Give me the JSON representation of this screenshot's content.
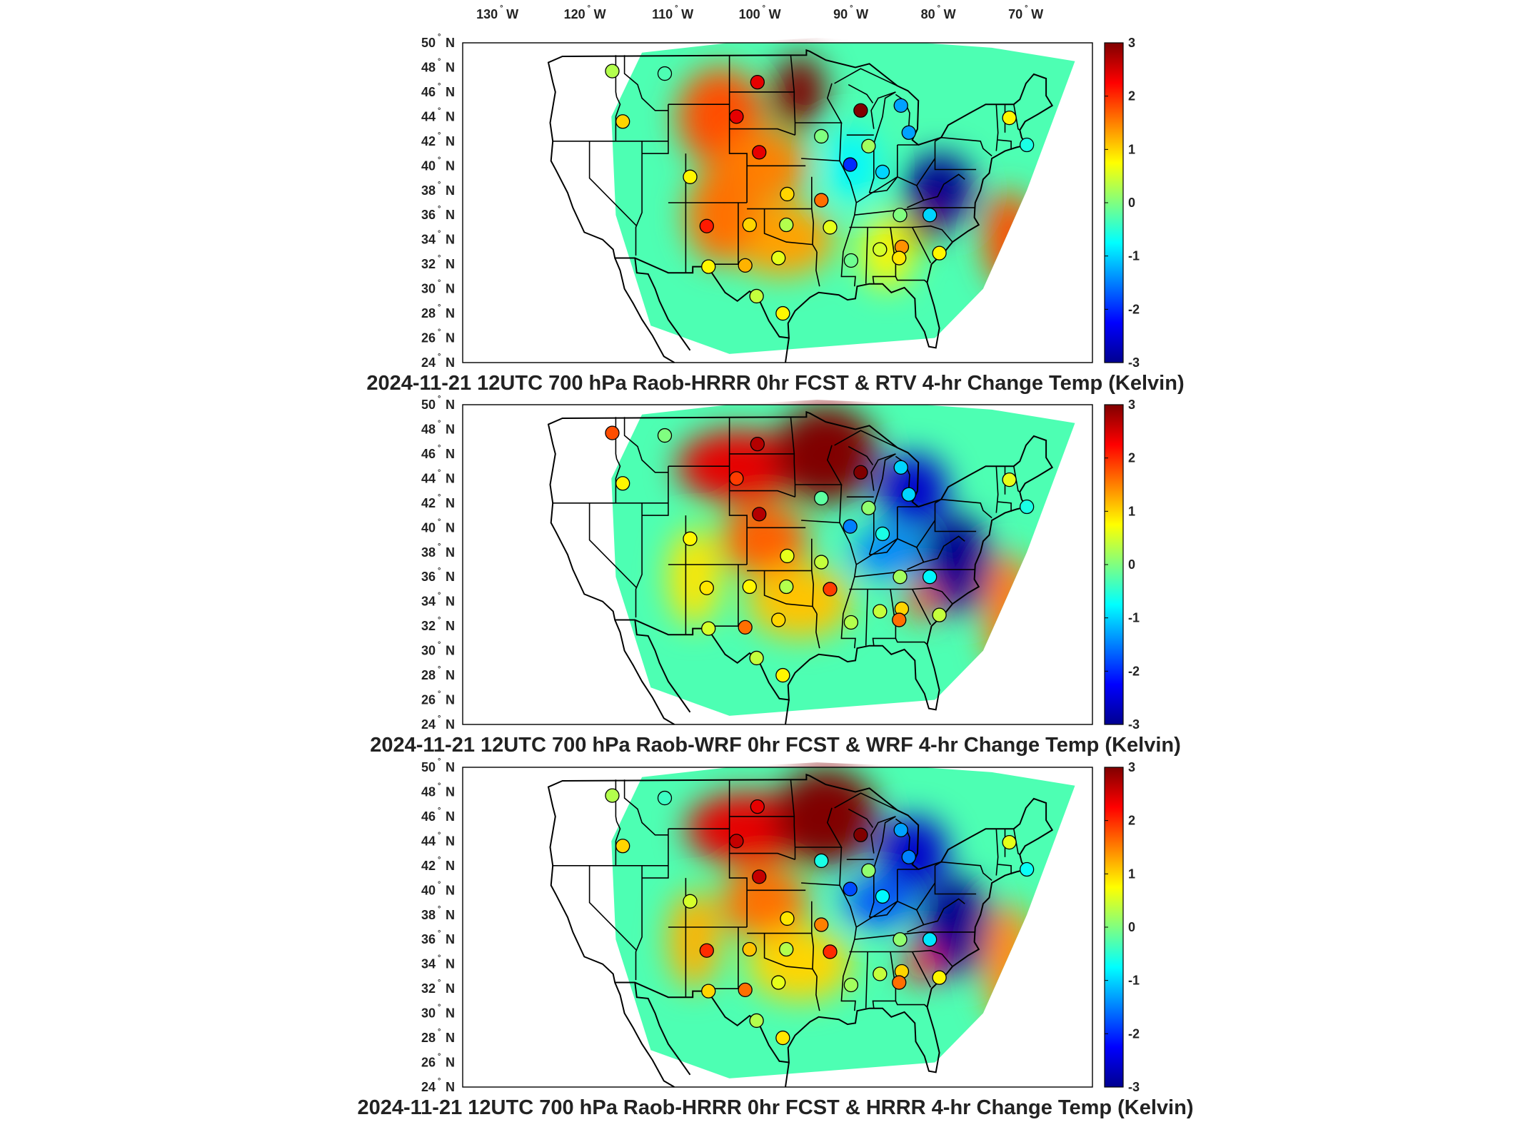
{
  "lon_labels": [
    {
      "deg": "130",
      "hem": "W"
    },
    {
      "deg": "120",
      "hem": "W"
    },
    {
      "deg": "110",
      "hem": "W"
    },
    {
      "deg": "100",
      "hem": "W"
    },
    {
      "deg": "90",
      "hem": "W"
    },
    {
      "deg": "80",
      "hem": "W"
    },
    {
      "deg": "70",
      "hem": "W"
    }
  ],
  "lat_labels": [
    {
      "deg": "50",
      "hem": "N"
    },
    {
      "deg": "48",
      "hem": "N"
    },
    {
      "deg": "46",
      "hem": "N"
    },
    {
      "deg": "44",
      "hem": "N"
    },
    {
      "deg": "42",
      "hem": "N"
    },
    {
      "deg": "40",
      "hem": "N"
    },
    {
      "deg": "38",
      "hem": "N"
    },
    {
      "deg": "36",
      "hem": "N"
    },
    {
      "deg": "34",
      "hem": "N"
    },
    {
      "deg": "32",
      "hem": "N"
    },
    {
      "deg": "30",
      "hem": "N"
    },
    {
      "deg": "28",
      "hem": "N"
    },
    {
      "deg": "26",
      "hem": "N"
    },
    {
      "deg": "24",
      "hem": "N"
    }
  ],
  "colorbar": {
    "ticks": [
      "3",
      "2",
      "1",
      "0",
      "-1",
      "-2",
      "-3"
    ],
    "colors": [
      "#00008f",
      "#0000ff",
      "#0080ff",
      "#00ffff",
      "#80ff80",
      "#ffff00",
      "#ff8000",
      "#ff0000",
      "#800000"
    ]
  },
  "panels": [
    {
      "title": "2024-11-21 12UTC 700 hPa Raob-HRRR 0hr FCST & RTV 4-hr Change Temp (Kelvin)",
      "blobs": [
        {
          "lon": -105,
          "lat": 44,
          "rx": 5,
          "ry": 4,
          "v": 1.8
        },
        {
          "lon": -96,
          "lat": 46,
          "rx": 3,
          "ry": 3,
          "v": 3
        },
        {
          "lon": -100,
          "lat": 40,
          "rx": 5,
          "ry": 3,
          "v": 1.5
        },
        {
          "lon": -98,
          "lat": 34,
          "rx": 6,
          "ry": 3,
          "v": 1.3
        },
        {
          "lon": -105,
          "lat": 36,
          "rx": 4,
          "ry": 4,
          "v": 1.6
        },
        {
          "lon": -90,
          "lat": 40,
          "rx": 3,
          "ry": 3,
          "v": -0.8
        },
        {
          "lon": -80,
          "lat": 38,
          "rx": 4,
          "ry": 3,
          "v": -3
        },
        {
          "lon": -82,
          "lat": 35,
          "rx": 2,
          "ry": 1.5,
          "v": 3
        },
        {
          "lon": -72,
          "lat": 34,
          "rx": 3,
          "ry": 4,
          "v": 1.8
        },
        {
          "lon": -86,
          "lat": 33,
          "rx": 3,
          "ry": 3,
          "v": 0.8
        }
      ],
      "stations": [
        {
          "lon": -117.4,
          "lat": 47.7,
          "v": 0.3
        },
        {
          "lon": -111.4,
          "lat": 47.5,
          "v": -0.3
        },
        {
          "lon": -100.8,
          "lat": 46.8,
          "v": 2.4
        },
        {
          "lon": -116.2,
          "lat": 43.6,
          "v": 1.0
        },
        {
          "lon": -103.2,
          "lat": 44.0,
          "v": 2.4
        },
        {
          "lon": -89.0,
          "lat": 44.5,
          "v": 3.0
        },
        {
          "lon": -84.4,
          "lat": 44.9,
          "v": -1.3
        },
        {
          "lon": -83.5,
          "lat": 42.7,
          "v": -1.3
        },
        {
          "lon": -88.1,
          "lat": 41.6,
          "v": 0.2
        },
        {
          "lon": -93.5,
          "lat": 42.4,
          "v": 0.0
        },
        {
          "lon": -100.6,
          "lat": 41.1,
          "v": 2.4
        },
        {
          "lon": -90.2,
          "lat": 40.1,
          "v": -2.0
        },
        {
          "lon": -86.5,
          "lat": 39.5,
          "v": -1.0
        },
        {
          "lon": -108.5,
          "lat": 39.1,
          "v": 0.8
        },
        {
          "lon": -97.4,
          "lat": 37.7,
          "v": 1.0
        },
        {
          "lon": -93.5,
          "lat": 37.2,
          "v": 1.6
        },
        {
          "lon": -92.5,
          "lat": 35.0,
          "v": 0.6
        },
        {
          "lon": -84.5,
          "lat": 36.0,
          "v": 0.0
        },
        {
          "lon": -81.1,
          "lat": 36.0,
          "v": -1.0
        },
        {
          "lon": -106.6,
          "lat": 35.1,
          "v": 2.1
        },
        {
          "lon": -101.7,
          "lat": 35.2,
          "v": 1.0
        },
        {
          "lon": -97.5,
          "lat": 35.2,
          "v": 0.3
        },
        {
          "lon": -86.8,
          "lat": 33.2,
          "v": 0.5
        },
        {
          "lon": -84.3,
          "lat": 33.4,
          "v": 1.4
        },
        {
          "lon": -84.6,
          "lat": 32.5,
          "v": 0.9
        },
        {
          "lon": -80.0,
          "lat": 32.9,
          "v": 0.8
        },
        {
          "lon": -98.4,
          "lat": 32.5,
          "v": 0.6
        },
        {
          "lon": -102.2,
          "lat": 31.9,
          "v": 1.2
        },
        {
          "lon": -106.4,
          "lat": 31.8,
          "v": 0.8
        },
        {
          "lon": -90.1,
          "lat": 32.3,
          "v": -0.1
        },
        {
          "lon": -97.9,
          "lat": 28.0,
          "v": 0.8
        },
        {
          "lon": -100.9,
          "lat": 29.4,
          "v": 0.4
        },
        {
          "lon": -72.0,
          "lat": 43.9,
          "v": 0.8
        },
        {
          "lon": -70.0,
          "lat": 41.7,
          "v": -0.6
        }
      ]
    },
    {
      "title": "2024-11-21 12UTC 700 hPa Raob-WRF 0hr FCST & WRF 4-hr Change Temp (Kelvin)",
      "blobs": [
        {
          "lon": -103,
          "lat": 45,
          "rx": 7,
          "ry": 3,
          "v": 2.4
        },
        {
          "lon": -93,
          "lat": 46,
          "rx": 6,
          "ry": 4,
          "v": 3
        },
        {
          "lon": -100,
          "lat": 39,
          "rx": 5,
          "ry": 3,
          "v": 1.7
        },
        {
          "lon": -96,
          "lat": 34,
          "rx": 6,
          "ry": 3,
          "v": 1.1
        },
        {
          "lon": -108,
          "lat": 36,
          "rx": 3,
          "ry": 4,
          "v": 0.9
        },
        {
          "lon": -83,
          "lat": 43,
          "rx": 4,
          "ry": 3,
          "v": -2.6
        },
        {
          "lon": -78,
          "lat": 37,
          "rx": 4,
          "ry": 4,
          "v": -3
        },
        {
          "lon": -86,
          "lat": 38,
          "rx": 4,
          "ry": 2,
          "v": -1.5
        },
        {
          "lon": -72,
          "lat": 33,
          "rx": 3,
          "ry": 5,
          "v": 1.5
        },
        {
          "lon": -82,
          "lat": 34,
          "rx": 2,
          "ry": 1.5,
          "v": 1.8
        }
      ],
      "stations": [
        {
          "lon": -117.4,
          "lat": 47.7,
          "v": 1.8
        },
        {
          "lon": -111.4,
          "lat": 47.5,
          "v": 0.0
        },
        {
          "lon": -100.8,
          "lat": 46.8,
          "v": 2.7
        },
        {
          "lon": -116.2,
          "lat": 43.6,
          "v": 0.8
        },
        {
          "lon": -103.2,
          "lat": 44.0,
          "v": 1.9
        },
        {
          "lon": -89.0,
          "lat": 44.5,
          "v": 3.0
        },
        {
          "lon": -84.4,
          "lat": 44.9,
          "v": -1.0
        },
        {
          "lon": -83.5,
          "lat": 42.7,
          "v": -1.0
        },
        {
          "lon": -88.1,
          "lat": 41.6,
          "v": 0.1
        },
        {
          "lon": -93.5,
          "lat": 42.4,
          "v": -0.2
        },
        {
          "lon": -100.6,
          "lat": 41.1,
          "v": 2.7
        },
        {
          "lon": -90.2,
          "lat": 40.1,
          "v": -1.5
        },
        {
          "lon": -86.5,
          "lat": 39.5,
          "v": -0.6
        },
        {
          "lon": -108.5,
          "lat": 39.1,
          "v": 0.8
        },
        {
          "lon": -97.4,
          "lat": 37.7,
          "v": 0.6
        },
        {
          "lon": -93.5,
          "lat": 37.2,
          "v": 0.4
        },
        {
          "lon": -92.5,
          "lat": 35.0,
          "v": 1.9
        },
        {
          "lon": -84.5,
          "lat": 36.0,
          "v": 0.2
        },
        {
          "lon": -81.1,
          "lat": 36.0,
          "v": -0.8
        },
        {
          "lon": -106.6,
          "lat": 35.1,
          "v": 0.9
        },
        {
          "lon": -101.7,
          "lat": 35.2,
          "v": 0.8
        },
        {
          "lon": -97.5,
          "lat": 35.2,
          "v": 0.3
        },
        {
          "lon": -86.8,
          "lat": 33.2,
          "v": 0.4
        },
        {
          "lon": -84.3,
          "lat": 33.4,
          "v": 1.0
        },
        {
          "lon": -84.6,
          "lat": 32.5,
          "v": 1.6
        },
        {
          "lon": -80.0,
          "lat": 32.9,
          "v": 0.4
        },
        {
          "lon": -98.4,
          "lat": 32.5,
          "v": 1.0
        },
        {
          "lon": -102.2,
          "lat": 31.9,
          "v": 1.6
        },
        {
          "lon": -106.4,
          "lat": 31.8,
          "v": 0.5
        },
        {
          "lon": -90.1,
          "lat": 32.3,
          "v": 0.3
        },
        {
          "lon": -97.9,
          "lat": 28.0,
          "v": 0.8
        },
        {
          "lon": -100.9,
          "lat": 29.4,
          "v": 0.4
        },
        {
          "lon": -72.0,
          "lat": 43.9,
          "v": 0.6
        },
        {
          "lon": -70.0,
          "lat": 41.7,
          "v": -0.6
        }
      ]
    },
    {
      "title": "2024-11-21 12UTC 700 hPa Raob-HRRR 0hr FCST & HRRR 4-hr Change Temp (Kelvin)",
      "blobs": [
        {
          "lon": -102,
          "lat": 45,
          "rx": 7,
          "ry": 3,
          "v": 2.4
        },
        {
          "lon": -93,
          "lat": 46,
          "rx": 6,
          "ry": 4,
          "v": 3
        },
        {
          "lon": -100,
          "lat": 39,
          "rx": 5,
          "ry": 3,
          "v": 1.6
        },
        {
          "lon": -96,
          "lat": 34,
          "rx": 6,
          "ry": 3,
          "v": 1.0
        },
        {
          "lon": -108,
          "lat": 36,
          "rx": 3,
          "ry": 4,
          "v": 1.2
        },
        {
          "lon": -83,
          "lat": 43,
          "rx": 4,
          "ry": 3,
          "v": -2.6
        },
        {
          "lon": -78,
          "lat": 37,
          "rx": 4,
          "ry": 4,
          "v": -3
        },
        {
          "lon": -87,
          "lat": 39,
          "rx": 4,
          "ry": 2,
          "v": -1.8
        },
        {
          "lon": -72,
          "lat": 34,
          "rx": 3,
          "ry": 5,
          "v": 1.4
        },
        {
          "lon": -82,
          "lat": 34,
          "rx": 2,
          "ry": 1.5,
          "v": 2.2
        }
      ],
      "stations": [
        {
          "lon": -117.4,
          "lat": 47.7,
          "v": 0.3
        },
        {
          "lon": -111.4,
          "lat": 47.5,
          "v": -0.4
        },
        {
          "lon": -100.8,
          "lat": 46.8,
          "v": 2.4
        },
        {
          "lon": -116.2,
          "lat": 43.6,
          "v": 1.0
        },
        {
          "lon": -103.2,
          "lat": 44.0,
          "v": 2.6
        },
        {
          "lon": -89.0,
          "lat": 44.5,
          "v": 3.0
        },
        {
          "lon": -84.4,
          "lat": 44.9,
          "v": -1.3
        },
        {
          "lon": -83.5,
          "lat": 42.7,
          "v": -1.5
        },
        {
          "lon": -88.1,
          "lat": 41.6,
          "v": 0.1
        },
        {
          "lon": -93.5,
          "lat": 42.4,
          "v": -0.6
        },
        {
          "lon": -100.6,
          "lat": 41.1,
          "v": 2.6
        },
        {
          "lon": -90.2,
          "lat": 40.1,
          "v": -1.8
        },
        {
          "lon": -86.5,
          "lat": 39.5,
          "v": -0.8
        },
        {
          "lon": -108.5,
          "lat": 39.1,
          "v": 0.5
        },
        {
          "lon": -97.4,
          "lat": 37.7,
          "v": 0.9
        },
        {
          "lon": -93.5,
          "lat": 37.2,
          "v": 1.5
        },
        {
          "lon": -92.5,
          "lat": 35.0,
          "v": 2.0
        },
        {
          "lon": -84.5,
          "lat": 36.0,
          "v": 0.1
        },
        {
          "lon": -81.1,
          "lat": 36.0,
          "v": -0.9
        },
        {
          "lon": -106.6,
          "lat": 35.1,
          "v": 2.0
        },
        {
          "lon": -101.7,
          "lat": 35.2,
          "v": 1.1
        },
        {
          "lon": -97.5,
          "lat": 35.2,
          "v": 0.3
        },
        {
          "lon": -86.8,
          "lat": 33.2,
          "v": 0.4
        },
        {
          "lon": -84.3,
          "lat": 33.4,
          "v": 1.0
        },
        {
          "lon": -84.6,
          "lat": 32.5,
          "v": 1.6
        },
        {
          "lon": -80.0,
          "lat": 32.9,
          "v": 0.8
        },
        {
          "lon": -98.4,
          "lat": 32.5,
          "v": 0.6
        },
        {
          "lon": -102.2,
          "lat": 31.9,
          "v": 1.6
        },
        {
          "lon": -106.4,
          "lat": 31.8,
          "v": 1.0
        },
        {
          "lon": -90.1,
          "lat": 32.3,
          "v": 0.2
        },
        {
          "lon": -97.9,
          "lat": 28.0,
          "v": 0.9
        },
        {
          "lon": -100.9,
          "lat": 29.4,
          "v": 0.3
        },
        {
          "lon": -72.0,
          "lat": 43.9,
          "v": 0.6
        },
        {
          "lon": -70.0,
          "lat": 41.7,
          "v": -0.7
        }
      ]
    }
  ]
}
